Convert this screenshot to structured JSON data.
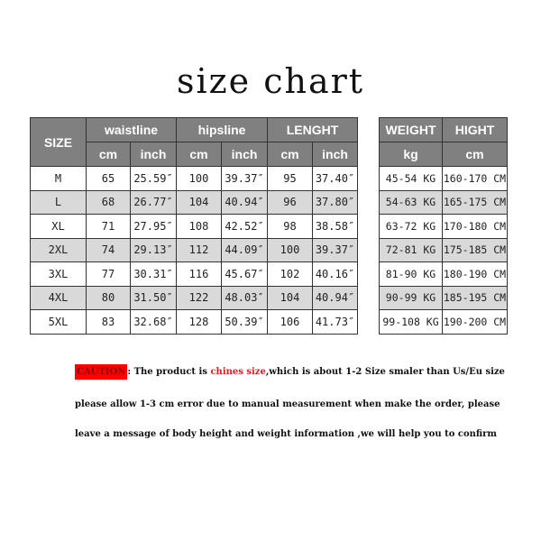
{
  "title": "size chart",
  "left_table": {
    "size_header": "SIZE",
    "groups": [
      "waistline",
      "hipsline",
      "LENGHT"
    ],
    "units": [
      "cm",
      "inch",
      "cm",
      "inch",
      "cm",
      "inch"
    ],
    "rows": [
      [
        "M",
        "65",
        "25.59″",
        "100",
        "39.37″",
        "95",
        "37.40″"
      ],
      [
        "L",
        "68",
        "26.77″",
        "104",
        "40.94″",
        "96",
        "37.80″"
      ],
      [
        "XL",
        "71",
        "27.95″",
        "108",
        "42.52″",
        "98",
        "38.58″"
      ],
      [
        "2XL",
        "74",
        "29.13″",
        "112",
        "44.09″",
        "100",
        "39.37″"
      ],
      [
        "3XL",
        "77",
        "30.31″",
        "116",
        "45.67″",
        "102",
        "40.16″"
      ],
      [
        "4XL",
        "80",
        "31.50″",
        "122",
        "48.03″",
        "104",
        "40.94″"
      ],
      [
        "5XL",
        "83",
        "32.68″",
        "128",
        "50.39″",
        "106",
        "41.73″"
      ]
    ]
  },
  "right_table": {
    "headers": [
      "WEIGHT",
      "HIGHT"
    ],
    "units": [
      "kg",
      "cm"
    ],
    "rows": [
      [
        "45-54 KG",
        "160-170 CM"
      ],
      [
        "54-63 KG",
        "165-175 CM"
      ],
      [
        "63-72 KG",
        "170-180 CM"
      ],
      [
        "72-81 KG",
        "175-185 CM"
      ],
      [
        "81-90 KG",
        "180-190 CM"
      ],
      [
        "90-99 KG",
        "185-195 CM"
      ],
      [
        "99-108 KG",
        "190-200 CM"
      ]
    ]
  },
  "notes": {
    "caution_label": "CAUTION",
    "line1_a": ":  The product is ",
    "line1_red": "chines size",
    "line1_b": ",which is about 1-2 Size smaler than Us/Eu size",
    "line2": "please allow 1-3 cm error due to manual measurement when make the order, please",
    "line3": "leave a message of body height and weight information ,we will help you to confirm"
  },
  "colors": {
    "header_bg": "#808080",
    "alt_row_bg": "#d9d9d9",
    "caution_bg": "#ff0000",
    "highlight": "#e02020"
  }
}
